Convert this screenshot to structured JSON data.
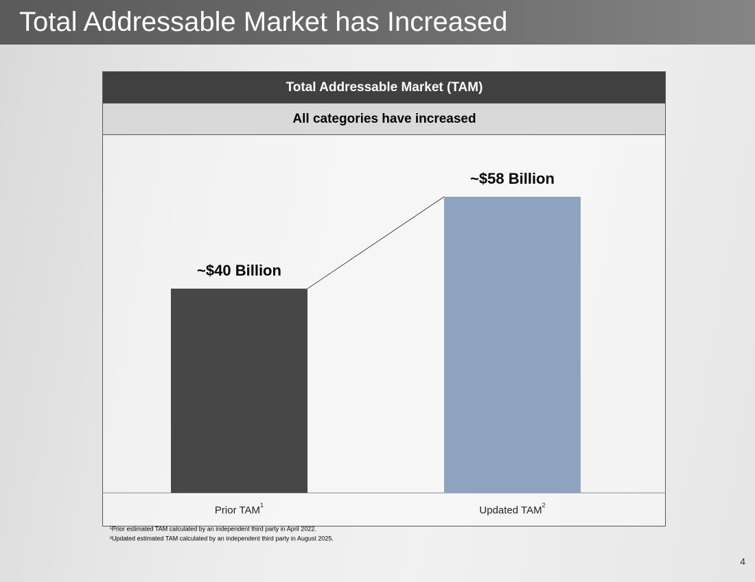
{
  "title": "Total Addressable Market has Increased",
  "page_number": "4",
  "chart_data": {
    "type": "bar",
    "title": "Total Addressable Market (TAM)",
    "subtitle": "All categories have increased",
    "categories": [
      "Prior TAM",
      "Updated TAM"
    ],
    "category_notes": [
      "1",
      "2"
    ],
    "values": [
      40,
      58
    ],
    "value_labels": [
      "~$40 Billion",
      "~$58 Billion"
    ],
    "colors": [
      "#474747",
      "#8ea3bf"
    ],
    "footnotes": [
      "¹Prior estimated TAM calculated by an independent third party in April 2022.",
      "²Updated estimated TAM calculated by an independent third party in August 2025."
    ]
  }
}
